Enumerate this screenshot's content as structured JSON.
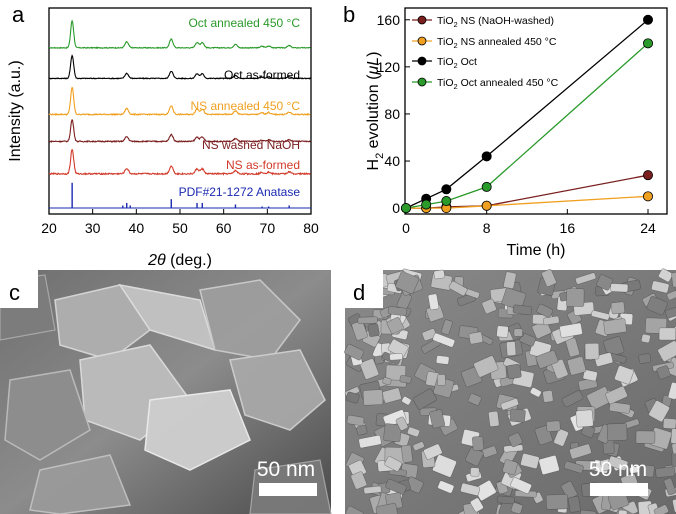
{
  "figure": {
    "panel_labels": [
      "a",
      "b",
      "c",
      "d"
    ]
  },
  "chart_data": [
    {
      "panel": "a",
      "type": "line",
      "xlabel": "2θ (deg.)",
      "ylabel": "Intensity (a.u.)",
      "xlim": [
        20,
        80
      ],
      "xticks": [
        20,
        30,
        40,
        50,
        60,
        70,
        80
      ],
      "yticks": "none",
      "grid": false,
      "series": [
        {
          "name": "Oct annealed 450 °C",
          "color": "#2a9a2a",
          "offset": 0.89,
          "scale": 1.0,
          "noise": 0.03
        },
        {
          "name": "Oct as-formed",
          "color": "#000000",
          "offset": 0.72,
          "scale": 0.85,
          "noise": 0.03
        },
        {
          "name": "NS annealed 450 °C",
          "color": "#f0a020",
          "offset": 0.52,
          "scale": 1.0,
          "noise": 0.04
        },
        {
          "name": "NS washed NaOH",
          "color": "#7a1e1e",
          "offset": 0.37,
          "scale": 0.8,
          "noise": 0.04
        },
        {
          "name": "NS as-formed",
          "color": "#d23a2a",
          "offset": 0.19,
          "scale": 0.9,
          "noise": 0.05
        },
        {
          "name": "PDF#21-1272 Anatase",
          "color": "#1a2ab0",
          "offset": 0.0,
          "type": "sticks",
          "sticks": [
            [
              25.3,
              1.0
            ],
            [
              36.9,
              0.1
            ],
            [
              37.8,
              0.2
            ],
            [
              38.6,
              0.1
            ],
            [
              48.0,
              0.35
            ],
            [
              53.9,
              0.2
            ],
            [
              55.1,
              0.2
            ],
            [
              62.7,
              0.14
            ],
            [
              68.8,
              0.06
            ],
            [
              70.3,
              0.06
            ],
            [
              75.0,
              0.1
            ]
          ]
        }
      ],
      "peaks": [
        [
          25.3,
          1.0
        ],
        [
          37.8,
          0.22
        ],
        [
          48.0,
          0.32
        ],
        [
          53.9,
          0.2
        ],
        [
          55.1,
          0.2
        ],
        [
          62.7,
          0.13
        ],
        [
          68.8,
          0.06
        ],
        [
          70.3,
          0.07
        ],
        [
          75.0,
          0.08
        ]
      ]
    },
    {
      "panel": "b",
      "type": "line",
      "xlabel": "Time (h)",
      "ylabel": "H2 evolution (μL)",
      "xlim": [
        0,
        24
      ],
      "ylim": [
        -5,
        170
      ],
      "xticks": [
        0,
        8,
        16,
        24
      ],
      "yticks": [
        0,
        40,
        80,
        120,
        160
      ],
      "grid": false,
      "legend": "top-left",
      "series": [
        {
          "name": "TiO2 NS (NaOH-washed)",
          "color": "#7a1e1e",
          "x": [
            0,
            2,
            4,
            8,
            24
          ],
          "y": [
            0,
            0,
            1,
            2,
            28
          ]
        },
        {
          "name": "TiO2 NS annealed 450 °C",
          "color": "#f0a020",
          "x": [
            0,
            2,
            4,
            8,
            24
          ],
          "y": [
            0,
            0,
            0,
            2,
            10
          ]
        },
        {
          "name": "TiO2 Oct",
          "color": "#000000",
          "x": [
            0,
            2,
            4,
            8,
            24
          ],
          "y": [
            0,
            8,
            16,
            44,
            160
          ]
        },
        {
          "name": "TiO2 Oct annealed 450 °C",
          "color": "#2a9a2a",
          "x": [
            0,
            2,
            4,
            8,
            24
          ],
          "y": [
            0,
            3,
            6,
            18,
            140
          ]
        }
      ]
    }
  ],
  "legend_b": {
    "ns_washed": {
      "pre": "TiO",
      "sub": "2",
      "post": " NS (NaOH-washed)"
    },
    "ns_annealed": {
      "pre": "TiO",
      "sub": "2",
      "post": " NS annealed 450 °C"
    },
    "oct": {
      "pre": "TiO",
      "sub": "2",
      "post": " Oct"
    },
    "oct_annealed": {
      "pre": "TiO",
      "sub": "2",
      "post": " Oct annealed 450 °C"
    }
  },
  "axis_titles": {
    "a_x_italic": "2θ",
    "a_x_rest": " (deg.)",
    "a_y": "Intensity (a.u.)",
    "b_x": "Time (h)",
    "b_y_pre": "H",
    "b_y_sub": "2",
    "b_y_mid": " evolution (",
    "b_y_mu": "μL",
    "b_y_post": ")"
  },
  "images": {
    "c_scale_bar": "50 nm",
    "d_scale_bar": "50 nm"
  }
}
